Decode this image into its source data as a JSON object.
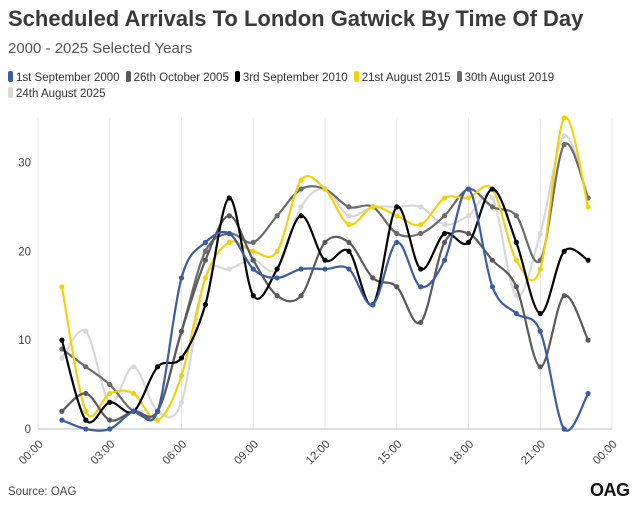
{
  "chart_data": {
    "type": "line",
    "title": "Scheduled Arrivals To London Gatwick By Time Of Day",
    "subtitle": "2000 - 2025 Selected Years",
    "source": "Source: OAG",
    "logo": "OAG",
    "xlabel": "",
    "ylabel": "",
    "xlim": [
      0,
      24
    ],
    "ylim": [
      0,
      35
    ],
    "y_ticks": [
      "0",
      "10",
      "20",
      "30"
    ],
    "y_tick_values": [
      0,
      10,
      20,
      30
    ],
    "x_ticks": [
      "00:00",
      "03:00",
      "06:00",
      "09:00",
      "12:00",
      "15:00",
      "18:00",
      "21:00",
      "00:00"
    ],
    "x_tick_values": [
      0,
      3,
      6,
      9,
      12,
      15,
      18,
      21,
      24
    ],
    "grid": "vertical",
    "legend_position": "top",
    "x": [
      1,
      2,
      3,
      4,
      5,
      6,
      7,
      8,
      9,
      10,
      11,
      12,
      13,
      14,
      15,
      16,
      17,
      18,
      19,
      20,
      21,
      22,
      23
    ],
    "series": [
      {
        "name": "1st September 2000",
        "color": "#3b5ba5",
        "values": [
          1,
          0,
          0,
          2,
          2,
          17,
          21,
          22,
          18,
          17,
          18,
          18,
          18,
          14,
          21,
          16,
          19,
          27,
          16,
          13,
          11,
          0,
          4
        ]
      },
      {
        "name": "26th October 2005",
        "color": "#5a5a5a",
        "values": [
          2,
          4,
          1,
          2,
          2,
          11,
          19,
          24,
          19,
          15,
          15,
          21,
          21,
          17,
          16,
          12,
          21,
          22,
          19,
          16,
          7,
          15,
          10
        ]
      },
      {
        "name": "3rd September 2010",
        "color": "#000000",
        "values": [
          10,
          1,
          3,
          2,
          7,
          8,
          14,
          26,
          15,
          18,
          24,
          19,
          20,
          14,
          25,
          18,
          22,
          21,
          27,
          21,
          13,
          20,
          19
        ]
      },
      {
        "name": "21st August 2015",
        "color": "#f2d10e",
        "values": [
          16,
          2,
          4,
          4,
          1,
          6,
          17,
          21,
          20,
          20,
          28,
          27,
          23,
          25,
          24,
          23,
          26,
          26,
          27,
          19,
          18,
          35,
          25
        ]
      },
      {
        "name": "30th August 2019",
        "color": "#6b6b6b",
        "values": [
          9,
          7,
          5,
          2,
          2,
          11,
          20,
          22,
          21,
          24,
          27,
          27,
          25,
          25,
          22,
          22,
          24,
          27,
          25,
          24,
          19,
          32,
          26
        ]
      },
      {
        "name": "24th August 2025",
        "color": "#d8d8d8",
        "values": [
          8,
          11,
          3,
          7,
          2,
          3,
          17,
          18,
          19,
          18,
          25,
          27,
          24,
          25,
          25,
          25,
          23,
          24,
          26,
          15,
          22,
          33,
          26
        ]
      }
    ]
  }
}
